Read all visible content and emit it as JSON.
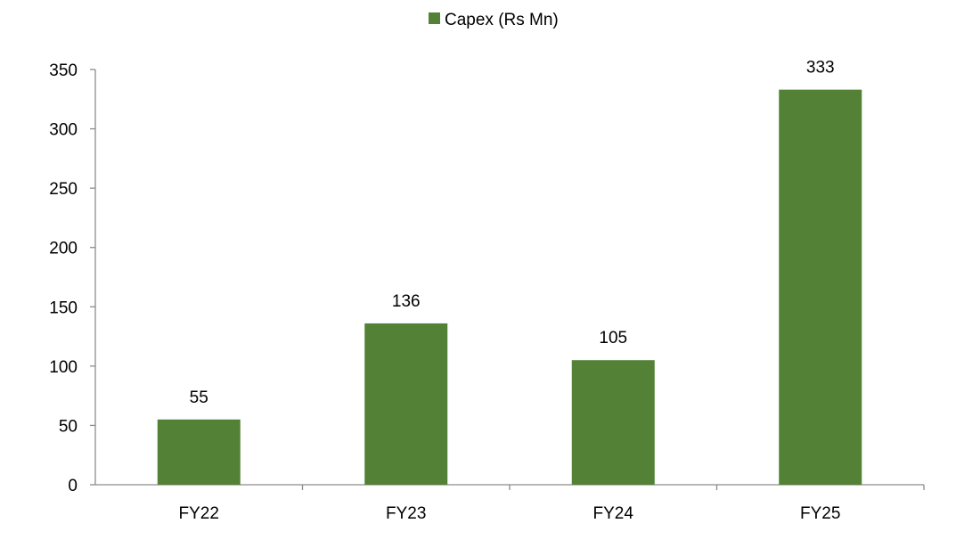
{
  "chart_data": {
    "type": "bar",
    "categories": [
      "FY22",
      "FY23",
      "FY24",
      "FY25"
    ],
    "series": [
      {
        "name": "Capex (Rs Mn)",
        "values": [
          55,
          136,
          105,
          333
        ],
        "color": "#538135"
      }
    ],
    "yticks": [
      "0",
      "50",
      "100",
      "150",
      "200",
      "250",
      "300",
      "350"
    ],
    "ylim": [
      0,
      350
    ],
    "legend": "top-center",
    "grid": false
  }
}
